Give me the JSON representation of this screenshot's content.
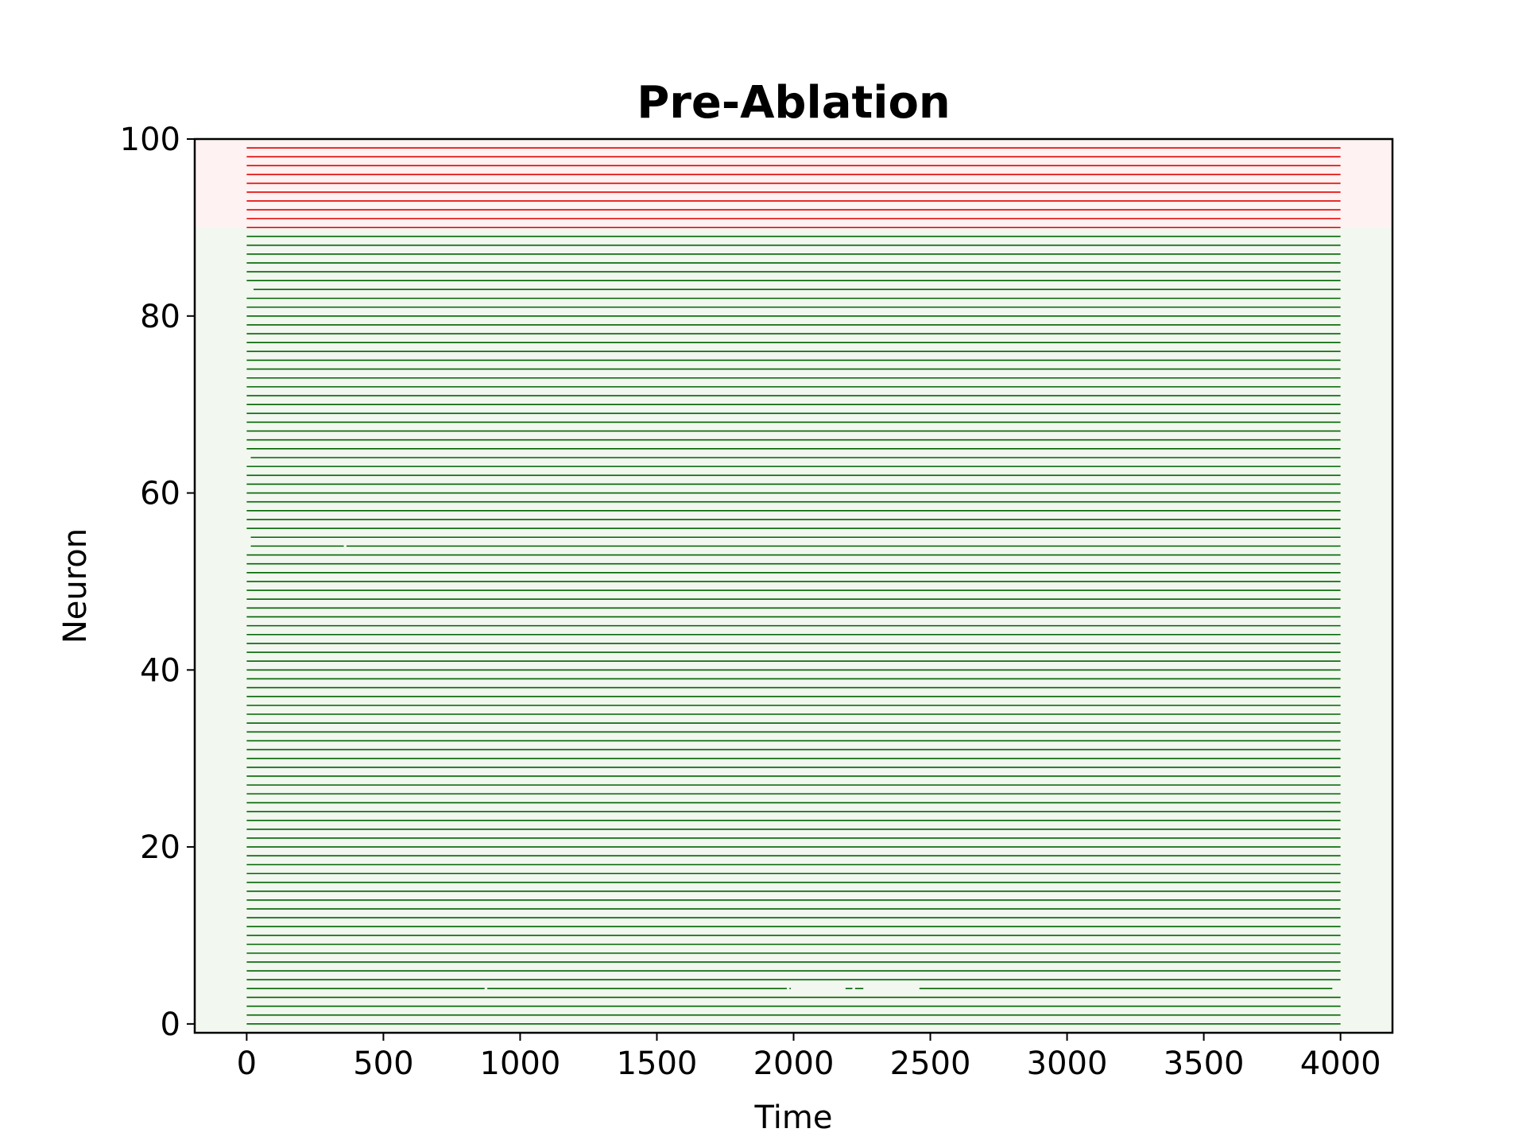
{
  "chart_data": {
    "type": "raster",
    "title": "Pre-Ablation",
    "xlabel": "Time",
    "ylabel": "Neuron",
    "xlim": [
      -190,
      4190
    ],
    "ylim": [
      -1,
      100
    ],
    "xticks": [
      0,
      500,
      1000,
      1500,
      2000,
      2500,
      3000,
      3500,
      4000
    ],
    "yticks": [
      0,
      20,
      40,
      60,
      80,
      100
    ],
    "grid": false,
    "legend": "none",
    "regions": [
      {
        "name": "excitatory",
        "y_range": [
          -1,
          90
        ],
        "color": "#f2f7f0"
      },
      {
        "name": "inhibitory",
        "y_range": [
          90,
          100
        ],
        "color": "#fff2f2"
      }
    ],
    "series": [
      {
        "group": "excitatory",
        "neurons": [
          0,
          89
        ],
        "color": "#006400"
      },
      {
        "group": "inhibitory",
        "neurons": [
          90,
          99
        ],
        "color": "#e00000"
      }
    ],
    "spike_time_range": [
      0,
      4000
    ],
    "notable_gaps": [
      {
        "neuron": 4,
        "gaps": [
          [
            870,
            880
          ],
          [
            1975,
            1985
          ],
          [
            1990,
            2190
          ],
          [
            2215,
            2225
          ],
          [
            2255,
            2460
          ],
          [
            3970,
            4000
          ]
        ]
      },
      {
        "neuron": 54,
        "gaps": [
          [
            0,
            15
          ],
          [
            355,
            365
          ]
        ]
      },
      {
        "neuron": 55,
        "gaps": [
          [
            0,
            15
          ]
        ]
      },
      {
        "neuron": 64,
        "gaps": [
          [
            0,
            15
          ]
        ]
      },
      {
        "neuron": 83,
        "gaps": [
          [
            0,
            25
          ]
        ]
      }
    ]
  }
}
